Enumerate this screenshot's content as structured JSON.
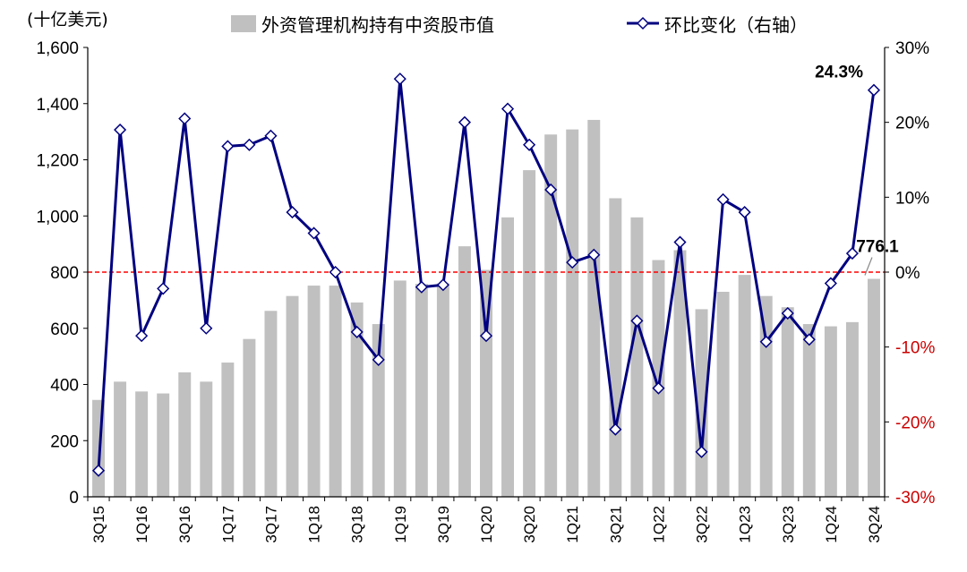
{
  "chart_data": {
    "type": "bar+line",
    "y_left_unit": "(十亿美元)",
    "categories": [
      "3Q15",
      "4Q15",
      "1Q16",
      "2Q16",
      "3Q16",
      "4Q16",
      "1Q17",
      "2Q17",
      "3Q17",
      "4Q17",
      "1Q18",
      "2Q18",
      "3Q18",
      "4Q18",
      "1Q19",
      "2Q19",
      "3Q19",
      "4Q19",
      "1Q20",
      "2Q20",
      "3Q20",
      "4Q20",
      "1Q21",
      "2Q21",
      "3Q21",
      "4Q21",
      "1Q22",
      "2Q22",
      "3Q22",
      "4Q22",
      "1Q23",
      "2Q23",
      "3Q23",
      "4Q23",
      "1Q24",
      "2Q24",
      "3Q24"
    ],
    "x_tick_labels": [
      "3Q15",
      "1Q16",
      "3Q16",
      "1Q17",
      "3Q17",
      "1Q18",
      "3Q18",
      "1Q19",
      "3Q19",
      "1Q20",
      "3Q20",
      "1Q21",
      "3Q21",
      "1Q22",
      "3Q22",
      "1Q23",
      "3Q23",
      "1Q24",
      "3Q24"
    ],
    "y_left": {
      "min": 0,
      "max": 1600,
      "ticks": [
        0,
        200,
        400,
        600,
        800,
        1000,
        1200,
        1400,
        1600
      ],
      "tick_labels": [
        "0",
        "200",
        "400",
        "600",
        "800",
        "1,000",
        "1,200",
        "1,400",
        "1,600"
      ]
    },
    "y_right": {
      "min": -30,
      "max": 30,
      "ticks": [
        -30,
        -20,
        -10,
        0,
        10,
        20,
        30
      ],
      "tick_labels": [
        "-30%",
        "-20%",
        "-10%",
        "0%",
        "10%",
        "20%",
        "30%"
      ]
    },
    "series": [
      {
        "name": "外资管理机构持有中资股市值",
        "kind": "bar",
        "axis": "left",
        "color": "#c0c0c0",
        "values": [
          345,
          410,
          375,
          368,
          443,
          410,
          478,
          562,
          662,
          715,
          752,
          752,
          692,
          615,
          770,
          758,
          760,
          892,
          808,
          995,
          1163,
          1290,
          1308,
          1342,
          1063,
          995,
          843,
          878,
          668,
          730,
          790,
          715,
          675,
          615,
          607,
          622,
          776.1
        ]
      },
      {
        "name": "环比变化（右轴）",
        "kind": "line",
        "axis": "right",
        "color": "#000080",
        "values": [
          -26.5,
          19.0,
          -8.5,
          -2.2,
          20.5,
          -7.5,
          16.8,
          17.0,
          18.2,
          8.0,
          5.2,
          0.0,
          -8.0,
          -11.7,
          25.8,
          -2.0,
          -1.7,
          20.0,
          -8.5,
          21.8,
          17.0,
          11.0,
          1.3,
          2.3,
          -21.0,
          -6.5,
          -15.5,
          4.0,
          -24.0,
          9.7,
          8.0,
          -9.3,
          -5.5,
          -9.0,
          -1.5,
          2.5,
          24.3
        ]
      }
    ],
    "reference_line": {
      "axis": "right",
      "value": 0,
      "color": "#ff0000",
      "style": "dashed"
    },
    "annotations": [
      {
        "text": "24.3%",
        "target": "line_last"
      },
      {
        "text": "776.1",
        "target": "bar_last"
      }
    ]
  }
}
